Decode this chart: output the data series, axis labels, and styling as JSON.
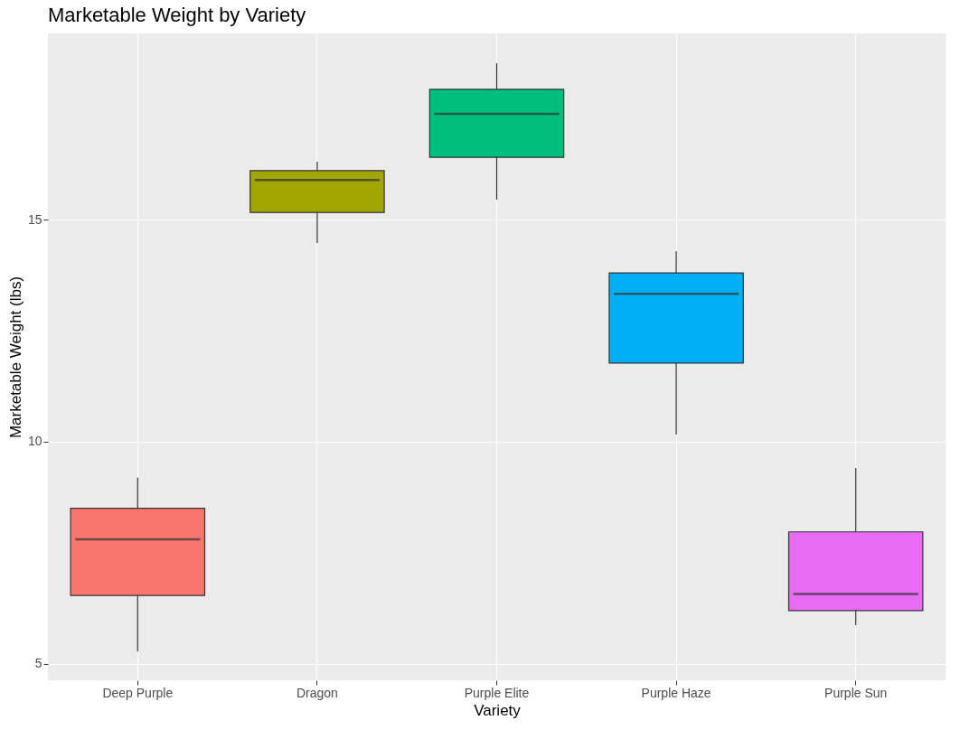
{
  "chart_data": {
    "type": "box",
    "title": "Marketable Weight by Variety",
    "xlabel": "Variety",
    "ylabel": "Marketable Weight (lbs)",
    "categories": [
      "Deep Purple",
      "Dragon",
      "Purple Elite",
      "Purple Haze",
      "Purple Sun"
    ],
    "colors": [
      "#f8766d",
      "#a3a500",
      "#00bf7d",
      "#00b0f6",
      "#e76bf3"
    ],
    "boxes": [
      {
        "low": 5.28,
        "q1": 6.54,
        "median": 7.8,
        "q3": 8.5,
        "high": 9.19
      },
      {
        "low": 14.47,
        "q1": 15.16,
        "median": 15.89,
        "q3": 16.1,
        "high": 16.3
      },
      {
        "low": 15.45,
        "q1": 16.4,
        "median": 17.38,
        "q3": 17.93,
        "high": 18.52
      },
      {
        "low": 10.16,
        "q1": 11.77,
        "median": 13.33,
        "q3": 13.8,
        "high": 14.29
      },
      {
        "low": 5.87,
        "q1": 6.2,
        "median": 6.57,
        "q3": 7.97,
        "high": 9.41
      }
    ],
    "ylim": [
      4.63,
      19.19
    ],
    "yticks": [
      5,
      10,
      15
    ],
    "grid": true
  }
}
